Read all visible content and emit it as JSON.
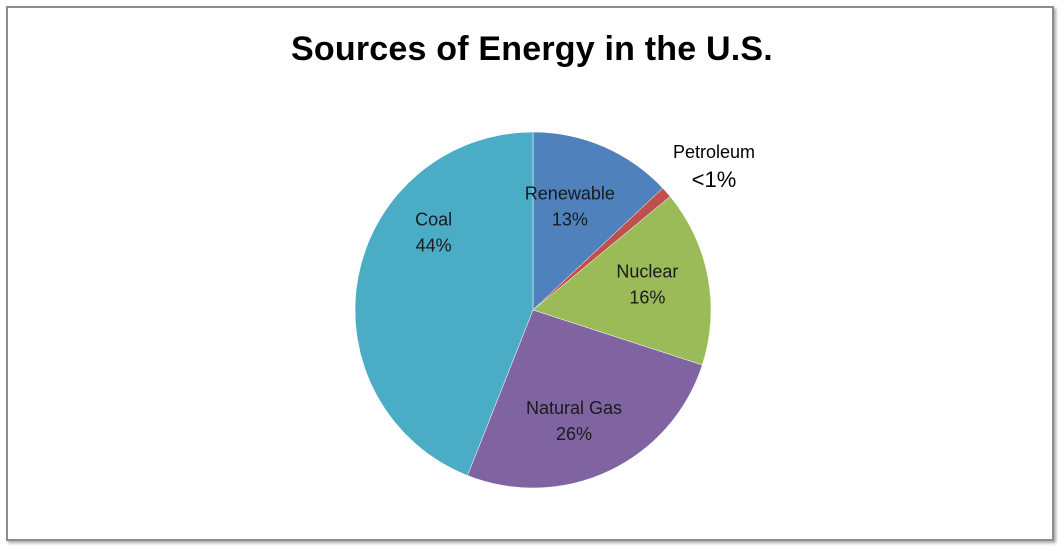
{
  "chart_data": {
    "type": "pie",
    "title": "Sources of Energy in the U.S.",
    "slices": [
      {
        "name": "Renewable",
        "value": 13,
        "label": "13%",
        "color": "#4f81bd"
      },
      {
        "name": "Petroleum",
        "value": 1,
        "label": "<1%",
        "color": "#c0504d"
      },
      {
        "name": "Nuclear",
        "value": 16,
        "label": "16%",
        "color": "#9bbb59"
      },
      {
        "name": "Natural Gas",
        "value": 26,
        "label": "26%",
        "color": "#8064a2"
      },
      {
        "name": "Coal",
        "value": 44,
        "label": "44%",
        "color": "#4bacc6"
      }
    ],
    "start_angle": "12 o'clock",
    "direction": "clockwise"
  }
}
